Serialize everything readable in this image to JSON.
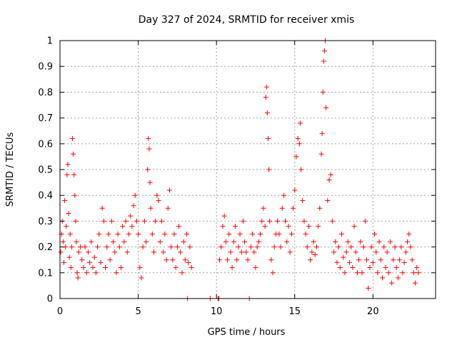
{
  "chart_data": {
    "type": "scatter",
    "title": "Day 327 of 2024, SRMTID for receiver xmis",
    "xlabel": "GPS time / hours",
    "ylabel": "SRMTID / TECUs",
    "xlim": [
      0,
      24
    ],
    "ylim": [
      0,
      1
    ],
    "xticks": [
      0,
      5,
      10,
      15,
      20
    ],
    "xtick_labels": [
      "0",
      "5",
      "10",
      "15",
      "20"
    ],
    "yticks": [
      0,
      0.1,
      0.2,
      0.3,
      0.4,
      0.5,
      0.6,
      0.7,
      0.8,
      0.9,
      1
    ],
    "ytick_labels": [
      "0",
      "0.1",
      "0.2",
      "0.3",
      "0.4",
      "0.5",
      "0.6",
      "0.7",
      "0.8",
      "0.9",
      "1"
    ],
    "grid": true,
    "marker": "+",
    "color": "#ff0000",
    "series": [
      {
        "name": "SRMTID",
        "points": [
          [
            0.05,
            0.18
          ],
          [
            0.1,
            0.25
          ],
          [
            0.15,
            0.3
          ],
          [
            0.2,
            0.22
          ],
          [
            0.25,
            0.14
          ],
          [
            0.3,
            0.38
          ],
          [
            0.35,
            0.2
          ],
          [
            0.4,
            0.28
          ],
          [
            0.45,
            0.48
          ],
          [
            0.5,
            0.52
          ],
          [
            0.55,
            0.33
          ],
          [
            0.6,
            0.16
          ],
          [
            0.65,
            0.25
          ],
          [
            0.7,
            0.12
          ],
          [
            0.75,
            0.2
          ],
          [
            0.8,
            0.62
          ],
          [
            0.85,
            0.56
          ],
          [
            0.9,
            0.48
          ],
          [
            0.95,
            0.4
          ],
          [
            1.0,
            0.3
          ],
          [
            1.05,
            0.22
          ],
          [
            1.1,
            0.1
          ],
          [
            1.15,
            0.08
          ],
          [
            1.2,
            0.18
          ],
          [
            1.3,
            0.2
          ],
          [
            1.4,
            0.15
          ],
          [
            1.5,
            0.12
          ],
          [
            1.6,
            0.2
          ],
          [
            1.7,
            0.1
          ],
          [
            1.8,
            0.18
          ],
          [
            1.9,
            0.14
          ],
          [
            2.0,
            0.22
          ],
          [
            2.1,
            0.12
          ],
          [
            2.2,
            0.16
          ],
          [
            2.3,
            0.1
          ],
          [
            2.4,
            0.2
          ],
          [
            2.5,
            0.25
          ],
          [
            2.6,
            0.14
          ],
          [
            2.7,
            0.35
          ],
          [
            2.8,
            0.3
          ],
          [
            2.9,
            0.12
          ],
          [
            3.0,
            0.2
          ],
          [
            3.1,
            0.25
          ],
          [
            3.2,
            0.15
          ],
          [
            3.3,
            0.3
          ],
          [
            3.4,
            0.22
          ],
          [
            3.5,
            0.18
          ],
          [
            3.6,
            0.1
          ],
          [
            3.7,
            0.25
          ],
          [
            3.8,
            0.2
          ],
          [
            3.9,
            0.12
          ],
          [
            4.0,
            0.28
          ],
          [
            4.1,
            0.22
          ],
          [
            4.2,
            0.3
          ],
          [
            4.3,
            0.18
          ],
          [
            4.4,
            0.25
          ],
          [
            4.5,
            0.32
          ],
          [
            4.6,
            0.28
          ],
          [
            4.7,
            0.36
          ],
          [
            4.8,
            0.4
          ],
          [
            4.9,
            0.3
          ],
          [
            5.0,
            0.25
          ],
          [
            5.1,
            0.12
          ],
          [
            5.2,
            0.08
          ],
          [
            5.3,
            0.2
          ],
          [
            5.4,
            0.3
          ],
          [
            5.5,
            0.22
          ],
          [
            5.6,
            0.5
          ],
          [
            5.65,
            0.62
          ],
          [
            5.7,
            0.58
          ],
          [
            5.75,
            0.45
          ],
          [
            5.8,
            0.35
          ],
          [
            5.9,
            0.25
          ],
          [
            6.0,
            0.18
          ],
          [
            6.1,
            0.3
          ],
          [
            6.2,
            0.4
          ],
          [
            6.3,
            0.38
          ],
          [
            6.4,
            0.22
          ],
          [
            6.5,
            0.3
          ],
          [
            6.6,
            0.18
          ],
          [
            6.7,
            0.25
          ],
          [
            6.8,
            0.15
          ],
          [
            6.9,
            0.35
          ],
          [
            7.0,
            0.42
          ],
          [
            7.1,
            0.2
          ],
          [
            7.2,
            0.15
          ],
          [
            7.3,
            0.25
          ],
          [
            7.4,
            0.12
          ],
          [
            7.5,
            0.2
          ],
          [
            7.6,
            0.28
          ],
          [
            7.7,
            0.18
          ],
          [
            7.8,
            0.1
          ],
          [
            7.9,
            0.22
          ],
          [
            8.0,
            0.15
          ],
          [
            8.1,
            0.25
          ],
          [
            8.15,
            0.0
          ],
          [
            8.2,
            0.14
          ],
          [
            8.3,
            0.2
          ],
          [
            8.4,
            0.12
          ],
          [
            9.6,
            0.0
          ],
          [
            10.1,
            0.0
          ],
          [
            10.15,
            0.0
          ],
          [
            10.2,
            0.15
          ],
          [
            10.3,
            0.2
          ],
          [
            10.4,
            0.28
          ],
          [
            10.5,
            0.32
          ],
          [
            10.6,
            0.22
          ],
          [
            10.7,
            0.15
          ],
          [
            10.8,
            0.25
          ],
          [
            10.9,
            0.18
          ],
          [
            11.0,
            0.12
          ],
          [
            11.1,
            0.22
          ],
          [
            11.2,
            0.28
          ],
          [
            11.3,
            0.15
          ],
          [
            11.4,
            0.2
          ],
          [
            11.5,
            0.25
          ],
          [
            11.6,
            0.18
          ],
          [
            11.7,
            0.3
          ],
          [
            11.8,
            0.22
          ],
          [
            11.9,
            0.18
          ],
          [
            12.0,
            0.15
          ],
          [
            12.1,
            0.0
          ],
          [
            12.2,
            0.2
          ],
          [
            12.3,
            0.25
          ],
          [
            12.4,
            0.18
          ],
          [
            12.5,
            0.12
          ],
          [
            12.6,
            0.2
          ],
          [
            12.7,
            0.22
          ],
          [
            12.8,
            0.25
          ],
          [
            12.9,
            0.3
          ],
          [
            13.0,
            0.35
          ],
          [
            13.1,
            0.28
          ],
          [
            13.15,
            0.78
          ],
          [
            13.2,
            0.82
          ],
          [
            13.25,
            0.72
          ],
          [
            13.3,
            0.62
          ],
          [
            13.35,
            0.5
          ],
          [
            13.4,
            0.3
          ],
          [
            13.5,
            0.15
          ],
          [
            13.6,
            0.1
          ],
          [
            13.7,
            0.2
          ],
          [
            13.8,
            0.25
          ],
          [
            13.9,
            0.3
          ],
          [
            14.0,
            0.25
          ],
          [
            14.1,
            0.2
          ],
          [
            14.2,
            0.35
          ],
          [
            14.3,
            0.4
          ],
          [
            14.4,
            0.3
          ],
          [
            14.5,
            0.22
          ],
          [
            14.6,
            0.28
          ],
          [
            14.7,
            0.18
          ],
          [
            14.8,
            0.25
          ],
          [
            14.9,
            0.35
          ],
          [
            15.0,
            0.42
          ],
          [
            15.1,
            0.55
          ],
          [
            15.2,
            0.62
          ],
          [
            15.3,
            0.6
          ],
          [
            15.35,
            0.68
          ],
          [
            15.4,
            0.5
          ],
          [
            15.5,
            0.38
          ],
          [
            15.6,
            0.3
          ],
          [
            15.7,
            0.25
          ],
          [
            15.8,
            0.2
          ],
          [
            15.9,
            0.28
          ],
          [
            16.0,
            0.15
          ],
          [
            16.1,
            0.18
          ],
          [
            16.2,
            0.22
          ],
          [
            16.3,
            0.17
          ],
          [
            16.4,
            0.2
          ],
          [
            16.5,
            0.28
          ],
          [
            16.6,
            0.35
          ],
          [
            16.7,
            0.56
          ],
          [
            16.75,
            0.64
          ],
          [
            16.8,
            0.8
          ],
          [
            16.85,
            0.92
          ],
          [
            16.9,
            0.96
          ],
          [
            16.95,
            1.0
          ],
          [
            17.0,
            0.74
          ],
          [
            17.1,
            0.38
          ],
          [
            17.2,
            0.46
          ],
          [
            17.3,
            0.48
          ],
          [
            17.4,
            0.3
          ],
          [
            17.5,
            0.18
          ],
          [
            17.6,
            0.22
          ],
          [
            17.7,
            0.14
          ],
          [
            17.8,
            0.2
          ],
          [
            17.9,
            0.12
          ],
          [
            18.0,
            0.25
          ],
          [
            18.1,
            0.16
          ],
          [
            18.2,
            0.1
          ],
          [
            18.3,
            0.18
          ],
          [
            18.4,
            0.22
          ],
          [
            18.5,
            0.14
          ],
          [
            18.6,
            0.2
          ],
          [
            18.7,
            0.12
          ],
          [
            18.8,
            0.28
          ],
          [
            18.9,
            0.18
          ],
          [
            19.0,
            0.1
          ],
          [
            19.1,
            0.15
          ],
          [
            19.2,
            0.22
          ],
          [
            19.3,
            0.1
          ],
          [
            19.4,
            0.2
          ],
          [
            19.5,
            0.3
          ],
          [
            19.6,
            0.15
          ],
          [
            19.7,
            0.04
          ],
          [
            19.8,
            0.12
          ],
          [
            19.9,
            0.2
          ],
          [
            20.0,
            0.14
          ],
          [
            20.1,
            0.25
          ],
          [
            20.2,
            0.18
          ],
          [
            20.3,
            0.1
          ],
          [
            20.4,
            0.22
          ],
          [
            20.5,
            0.15
          ],
          [
            20.6,
            0.08
          ],
          [
            20.7,
            0.2
          ],
          [
            20.8,
            0.12
          ],
          [
            20.9,
            0.18
          ],
          [
            21.0,
            0.1
          ],
          [
            21.1,
            0.22
          ],
          [
            21.2,
            0.06
          ],
          [
            21.3,
            0.15
          ],
          [
            21.4,
            0.2
          ],
          [
            21.5,
            0.12
          ],
          [
            21.6,
            0.08
          ],
          [
            21.7,
            0.15
          ],
          [
            21.8,
            0.2
          ],
          [
            21.9,
            0.1
          ],
          [
            22.0,
            0.14
          ],
          [
            22.1,
            0.18
          ],
          [
            22.2,
            0.22
          ],
          [
            22.3,
            0.25
          ],
          [
            22.4,
            0.2
          ],
          [
            22.5,
            0.15
          ],
          [
            22.6,
            0.1
          ],
          [
            22.7,
            0.06
          ],
          [
            22.8,
            0.12
          ],
          [
            22.9,
            0.1
          ]
        ]
      }
    ]
  }
}
